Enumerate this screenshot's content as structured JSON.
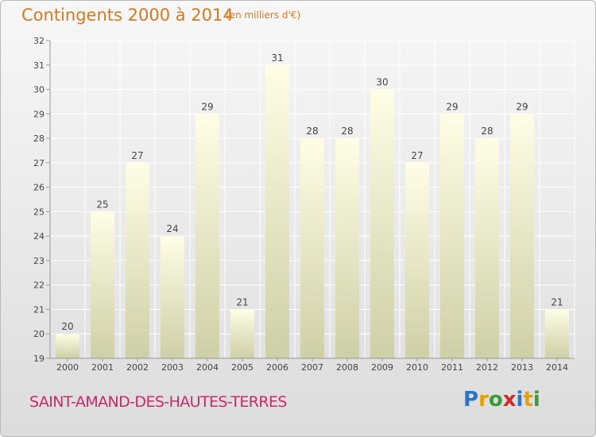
{
  "chart_data": {
    "type": "bar",
    "title": "Contingents 2000 à 2014",
    "subtitle": "(en milliers d'€)",
    "categories": [
      "2000",
      "2001",
      "2002",
      "2003",
      "2004",
      "2005",
      "2006",
      "2007",
      "2008",
      "2009",
      "2010",
      "2011",
      "2012",
      "2013",
      "2014"
    ],
    "values": [
      20,
      25,
      27,
      24,
      29,
      21,
      31,
      28,
      28,
      30,
      27,
      29,
      28,
      29,
      21
    ],
    "ylim": [
      19,
      32
    ],
    "yticks": [
      19,
      20,
      21,
      22,
      23,
      24,
      25,
      26,
      27,
      28,
      29,
      30,
      31,
      32
    ],
    "grid": true,
    "xlabel": "",
    "ylabel": "",
    "colors": {
      "bar_top": "#fffde6",
      "bar_bottom": "#cfcfa6",
      "grid": "#ffffff",
      "axis": "#999999",
      "label": "#444444"
    }
  },
  "commune": "SAINT-AMAND-DES-HAUTES-TERRES",
  "logo": {
    "letters": [
      "P",
      "r",
      "o",
      "x",
      "i",
      "t",
      "i"
    ],
    "colors": [
      "#2a76c6",
      "#e8a100",
      "#3c9a3c",
      "#d02a2a",
      "#2a76c6",
      "#e8a100",
      "#3c9a3c"
    ]
  }
}
